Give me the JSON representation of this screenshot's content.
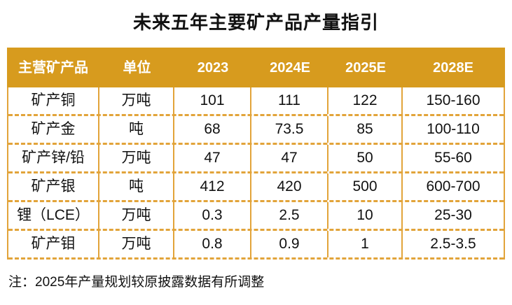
{
  "page": {
    "title": "未来五年主要矿产品产量指引",
    "note": "注：2025年产量规划较原披露数据有所调整"
  },
  "colors": {
    "header_bg": "#D79B1E",
    "table_border": "#E2A43A",
    "header_text": "#FFFFFF",
    "body_text": "#111111"
  },
  "chart_data": {
    "type": "table",
    "title": "未来五年主要矿产品产量指引",
    "columns": [
      "主营矿产品",
      "单位",
      "2023",
      "2024E",
      "2025E",
      "2028E"
    ],
    "rows": [
      [
        "矿产铜",
        "万吨",
        "101",
        "111",
        "122",
        "150-160"
      ],
      [
        "矿产金",
        "吨",
        "68",
        "73.5",
        "85",
        "100-110"
      ],
      [
        "矿产锌/铅",
        "万吨",
        "47",
        "47",
        "50",
        "55-60"
      ],
      [
        "矿产银",
        "吨",
        "412",
        "420",
        "500",
        "600-700"
      ],
      [
        "锂（LCE）",
        "万吨",
        "0.3",
        "2.5",
        "10",
        "25-30"
      ],
      [
        "矿产钼",
        "万吨",
        "0.8",
        "0.9",
        "1",
        "2.5-3.5"
      ]
    ],
    "note": "注：2025年产量规划较原披露数据有所调整",
    "layout": {
      "grid": "solid vertical lines, dashed horizontal lines",
      "header_style": "solid gold band"
    }
  }
}
